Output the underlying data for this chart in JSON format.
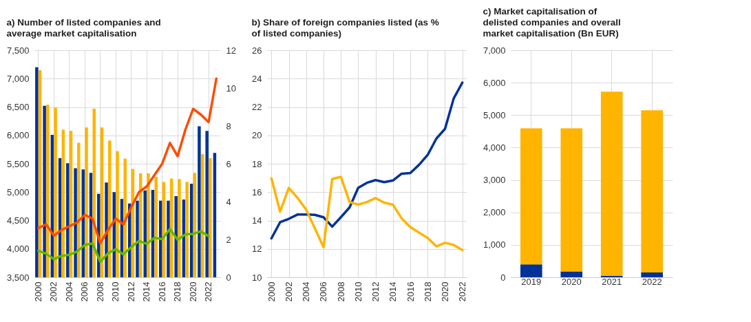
{
  "chart_data": [
    {
      "type": "bar",
      "title": "a) Number of listed companies and average market capitalisation",
      "categories": [
        "2000",
        null,
        "2002",
        null,
        "2004",
        null,
        "2006",
        null,
        "2008",
        null,
        "2010",
        null,
        "2012",
        null,
        "2014",
        null,
        "2016",
        null,
        "2018",
        null,
        "2020",
        null,
        "2022",
        null
      ],
      "ylim": [
        3500,
        7500
      ],
      "yticks": [
        {
          "value": 3500,
          "label": "3,500"
        },
        {
          "value": 4000,
          "label": "4,000"
        },
        {
          "value": 4500,
          "label": "4,500"
        },
        {
          "value": 5000,
          "label": "5,000"
        },
        {
          "value": 5500,
          "label": "5,500"
        },
        {
          "value": 6000,
          "label": "6,000"
        },
        {
          "value": 6500,
          "label": "6,500"
        },
        {
          "value": 7000,
          "label": "7,000"
        },
        {
          "value": 7500,
          "label": "7,500"
        }
      ],
      "y2lim": [
        0,
        12
      ],
      "y2ticks": [
        0,
        2,
        4,
        6,
        8,
        10,
        12
      ],
      "grid": true,
      "series": [
        {
          "color": "#003299",
          "values": [
            7200,
            6520,
            6010,
            5600,
            5510,
            5420,
            5400,
            5340,
            4970,
            5170,
            5000,
            4880,
            4800,
            4850,
            5030,
            5040,
            4850,
            4850,
            4930,
            4870,
            5150,
            6160,
            6080,
            5690
          ]
        },
        {
          "color": "#ffb400",
          "values": [
            7150,
            6540,
            6490,
            6100,
            6080,
            5870,
            6140,
            6470,
            6140,
            5910,
            5720,
            5590,
            5410,
            5330,
            5330,
            5270,
            5180,
            5240,
            5230,
            5180,
            5340,
            5670,
            5600,
            null
          ]
        },
        {
          "type": "line",
          "axis": "y2",
          "color": "#ff4b00",
          "values": [
            2.6,
            2.8,
            2.2,
            2.5,
            2.7,
            2.9,
            3.3,
            3.1,
            1.8,
            2.5,
            3.1,
            2.8,
            3.7,
            4.5,
            4.8,
            5.4,
            6.0,
            7.1,
            6.4,
            7.8,
            8.9,
            8.6,
            8.2,
            10.5
          ]
        },
        {
          "type": "line",
          "axis": "y2",
          "color": "#65b800",
          "values": [
            1.4,
            1.25,
            0.96,
            1.13,
            1.19,
            1.36,
            1.71,
            1.79,
            0.82,
            1.27,
            1.48,
            1.21,
            1.6,
            1.92,
            1.77,
            2.09,
            2.02,
            2.55,
            1.98,
            2.27,
            2.29,
            2.43,
            2.17,
            null
          ]
        }
      ]
    },
    {
      "type": "line",
      "title": "b) Share of foreign companies listed (as % of listed companies)",
      "categories": [
        "2000",
        null,
        "2002",
        null,
        "2004",
        null,
        "2006",
        null,
        "2008",
        null,
        "2010",
        null,
        "2012",
        null,
        "2014",
        null,
        "2016",
        null,
        "2018",
        null,
        "2020",
        null,
        "2022"
      ],
      "ylim": [
        10,
        26
      ],
      "yticks": [
        10,
        12,
        14,
        16,
        18,
        20,
        22,
        24,
        26
      ],
      "grid": true,
      "series": [
        {
          "color": "#003299",
          "values": [
            12.74,
            13.88,
            14.12,
            14.42,
            14.43,
            14.4,
            14.23,
            13.57,
            14.23,
            14.92,
            16.3,
            16.66,
            16.85,
            16.7,
            16.82,
            17.3,
            17.35,
            17.92,
            18.62,
            19.77,
            20.46,
            22.6,
            23.72
          ]
        },
        {
          "color": "#ffb400",
          "values": [
            16.97,
            14.62,
            16.3,
            15.6,
            14.77,
            13.46,
            12.12,
            16.92,
            17.08,
            15.3,
            15.12,
            15.3,
            15.58,
            15.26,
            15.12,
            14.15,
            13.54,
            13.15,
            12.77,
            12.18,
            12.43,
            12.28,
            11.92
          ]
        }
      ]
    },
    {
      "type": "bar",
      "title": "c) Market capitalisation of delisted companies and overall market capitalisation (Bn EUR)",
      "categories": [
        "2019",
        "2020",
        "2021",
        "2022"
      ],
      "stacked": true,
      "ylim": [
        0,
        7000
      ],
      "yticks": [
        0,
        {
          "value": 1000,
          "label": "1,000"
        },
        {
          "value": 2000,
          "label": "2,000"
        },
        {
          "value": 3000,
          "label": "3,000"
        },
        {
          "value": 4000,
          "label": "4,000"
        },
        {
          "value": 5000,
          "label": "5,000"
        },
        {
          "value": 6000,
          "label": "6,000"
        },
        {
          "value": 7000,
          "label": "7,000"
        }
      ],
      "grid": true,
      "series": [
        {
          "color": "#003299",
          "values": [
            400,
            180,
            50,
            150
          ]
        },
        {
          "color": "#ffb400",
          "values": [
            4190,
            4410,
            5670,
            5000
          ]
        }
      ]
    }
  ]
}
